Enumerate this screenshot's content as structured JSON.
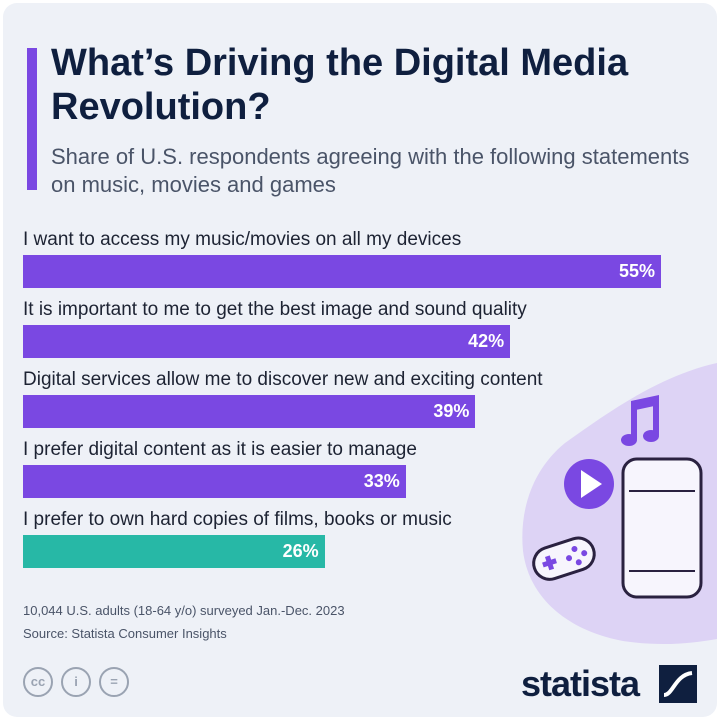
{
  "chart_data": {
    "type": "bar",
    "orientation": "horizontal",
    "title": "What’s Driving the Digital Media Revolution?",
    "subtitle": "Share of U.S. respondents agreeing with the following statements on music, movies and games",
    "unit": "%",
    "xlim": [
      0,
      55
    ],
    "categories": [
      "I want to access my music/movies on all my devices",
      "It is important to me to get the best image and sound quality",
      "Digital services allow me to discover new and exciting content",
      "I prefer digital content as it is easier to manage",
      "I prefer to own hard copies of films, books or music"
    ],
    "values": [
      55,
      42,
      39,
      33,
      26
    ],
    "value_labels": [
      "55%",
      "42%",
      "39%",
      "33%",
      "26%"
    ],
    "bar_colors": [
      "#7a48e2",
      "#7a48e2",
      "#7a48e2",
      "#7a48e2",
      "#27b8a6"
    ],
    "grid": false,
    "legend": "none"
  },
  "footer": {
    "note": "10,044 U.S. adults (18-64 y/o) surveyed Jan.-Dec. 2023",
    "source": "Source: Statista Consumer Insights",
    "license": {
      "cc": "cc",
      "by": "i",
      "nd": "="
    },
    "brand": "statista"
  },
  "icons": [
    "music-note-icon",
    "play-icon",
    "smartphone-icon",
    "gamepad-icon"
  ],
  "colors": {
    "title": "#0f1f3f",
    "accent": "#7a48e2",
    "bar": "#7a48e2",
    "bar_highlight": "#27b8a6",
    "background": "#eef1f7"
  }
}
